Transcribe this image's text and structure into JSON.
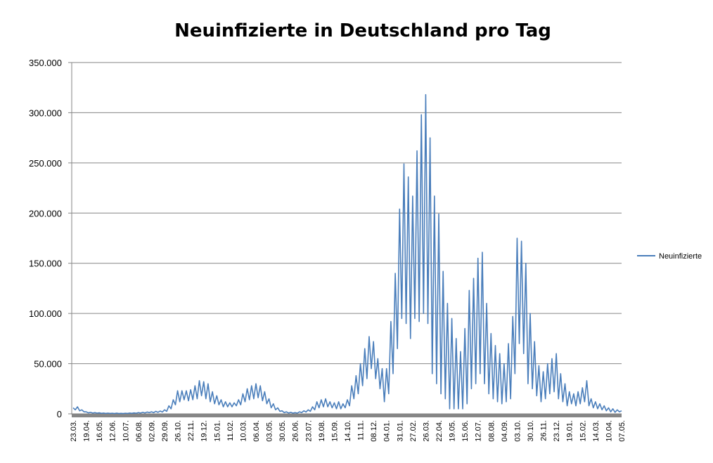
{
  "chart_data": {
    "type": "line",
    "title": "Neuinfizierte in Deutschland pro Tag",
    "categories": [
      "23.03.",
      null,
      null,
      null,
      null,
      null,
      "19.04.",
      null,
      null,
      null,
      null,
      null,
      "16.05.",
      null,
      null,
      null,
      null,
      null,
      "12.06.",
      null,
      null,
      null,
      null,
      null,
      "10.07.",
      null,
      null,
      null,
      null,
      null,
      "06.08.",
      null,
      null,
      null,
      null,
      null,
      "02.09.",
      null,
      null,
      null,
      null,
      null,
      "29.09.",
      null,
      null,
      null,
      null,
      null,
      "26.10.",
      null,
      null,
      null,
      null,
      null,
      "22.11.",
      null,
      null,
      null,
      null,
      null,
      "19.12.",
      null,
      null,
      null,
      null,
      null,
      "15.01.",
      null,
      null,
      null,
      null,
      null,
      "11.02.",
      null,
      null,
      null,
      null,
      null,
      "10.03.",
      null,
      null,
      null,
      null,
      null,
      "06.04.",
      null,
      null,
      null,
      null,
      null,
      "03.05.",
      null,
      null,
      null,
      null,
      null,
      "30.05.",
      null,
      null,
      null,
      null,
      null,
      "26.06.",
      null,
      null,
      null,
      null,
      null,
      "23.07.",
      null,
      null,
      null,
      null,
      null,
      "19.08.",
      null,
      null,
      null,
      null,
      null,
      "15.09.",
      null,
      null,
      null,
      null,
      null,
      "14.10.",
      null,
      null,
      null,
      null,
      null,
      "11.11.",
      null,
      null,
      null,
      null,
      null,
      "08.12.",
      null,
      null,
      null,
      null,
      null,
      "04.01.",
      null,
      null,
      null,
      null,
      null,
      "31.01.",
      null,
      null,
      null,
      null,
      null,
      "27.02.",
      null,
      null,
      null,
      null,
      null,
      "26.03.",
      null,
      null,
      null,
      null,
      null,
      "22.04.",
      null,
      null,
      null,
      null,
      null,
      "19.05.",
      null,
      null,
      null,
      null,
      null,
      "15.06.",
      null,
      null,
      null,
      null,
      null,
      "12.07.",
      null,
      null,
      null,
      null,
      null,
      "08.08.",
      null,
      null,
      null,
      null,
      null,
      "04.09.",
      null,
      null,
      null,
      null,
      null,
      "03.10.",
      null,
      null,
      null,
      null,
      null,
      "30.10.",
      null,
      null,
      null,
      null,
      null,
      "26.11.",
      null,
      null,
      null,
      null,
      null,
      "23.12.",
      null,
      null,
      null,
      null,
      null,
      "19.01.",
      null,
      null,
      null,
      null,
      null,
      "15.02.",
      null,
      null,
      null,
      null,
      null,
      "14.03.",
      null,
      null,
      null,
      null,
      null,
      "10.04.",
      null,
      null,
      null,
      null,
      null,
      "07.05."
    ],
    "series": [
      {
        "name": "Neuinfizierte",
        "color": "#4a7ebb",
        "values": [
          6000,
          4000,
          7000,
          3000,
          4000,
          2000,
          2000,
          1000,
          1500,
          800,
          1200,
          700,
          1000,
          500,
          800,
          400,
          700,
          400,
          600,
          300,
          700,
          300,
          500,
          300,
          600,
          400,
          800,
          500,
          900,
          600,
          1200,
          800,
          1500,
          900,
          1800,
          1200,
          2000,
          1200,
          2500,
          1500,
          2800,
          1800,
          4000,
          2500,
          8000,
          5000,
          14000,
          9000,
          23000,
          12000,
          23000,
          14000,
          23000,
          13000,
          24000,
          14000,
          28000,
          15000,
          33000,
          18000,
          32000,
          15000,
          30000,
          12000,
          22000,
          10000,
          18000,
          9000,
          14000,
          7000,
          12000,
          7000,
          11000,
          7000,
          11000,
          8000,
          14000,
          9000,
          20000,
          12000,
          25000,
          14000,
          28000,
          15000,
          30000,
          16000,
          28000,
          13000,
          22000,
          10000,
          15000,
          6000,
          10000,
          4000,
          6000,
          2500,
          3000,
          1200,
          2000,
          800,
          1500,
          700,
          1200,
          700,
          2000,
          1200,
          3000,
          1800,
          4000,
          2500,
          7000,
          4000,
          12000,
          6000,
          14000,
          7000,
          15000,
          7000,
          12000,
          6000,
          11000,
          5000,
          12000,
          5000,
          10000,
          6000,
          14000,
          8000,
          28000,
          15000,
          38000,
          20000,
          50000,
          28000,
          65000,
          35000,
          77000,
          45000,
          72000,
          35000,
          55000,
          25000,
          45000,
          12000,
          45000,
          20000,
          92000,
          40000,
          140000,
          65000,
          204000,
          95000,
          249000,
          90000,
          236000,
          75000,
          217000,
          95000,
          262000,
          92000,
          298000,
          100000,
          318000,
          90000,
          275000,
          40000,
          217000,
          30000,
          199000,
          20000,
          142000,
          15000,
          110000,
          5000,
          95000,
          5000,
          75000,
          5000,
          62000,
          5000,
          85000,
          10000,
          123000,
          25000,
          135000,
          30000,
          155000,
          40000,
          161000,
          30000,
          110000,
          20000,
          80000,
          15000,
          68000,
          12000,
          60000,
          10000,
          50000,
          12000,
          70000,
          15000,
          97000,
          40000,
          175000,
          70000,
          172000,
          60000,
          150000,
          30000,
          100000,
          25000,
          72000,
          18000,
          48000,
          12000,
          42000,
          15000,
          50000,
          20000,
          55000,
          22000,
          60000,
          15000,
          40000,
          12000,
          30000,
          8000,
          22000,
          10000,
          20000,
          8000,
          22000,
          10000,
          26000,
          12000,
          33000,
          8000,
          15000,
          6000,
          12000,
          5000,
          10000,
          4000,
          8000,
          3000,
          6000,
          2000,
          5000,
          1500,
          4000,
          2000,
          3000
        ]
      }
    ],
    "ylim": [
      0,
      350000
    ],
    "yticks": [
      0,
      {
        "value": 50000,
        "label": "50.000"
      },
      {
        "value": 100000,
        "label": "100.000"
      },
      {
        "value": 150000,
        "label": "150.000"
      },
      {
        "value": 200000,
        "label": "200.000"
      },
      {
        "value": 250000,
        "label": "250.000"
      },
      {
        "value": 300000,
        "label": "300.000"
      },
      {
        "value": 350000,
        "label": "350.000"
      }
    ],
    "grid": true,
    "legend": "right"
  }
}
